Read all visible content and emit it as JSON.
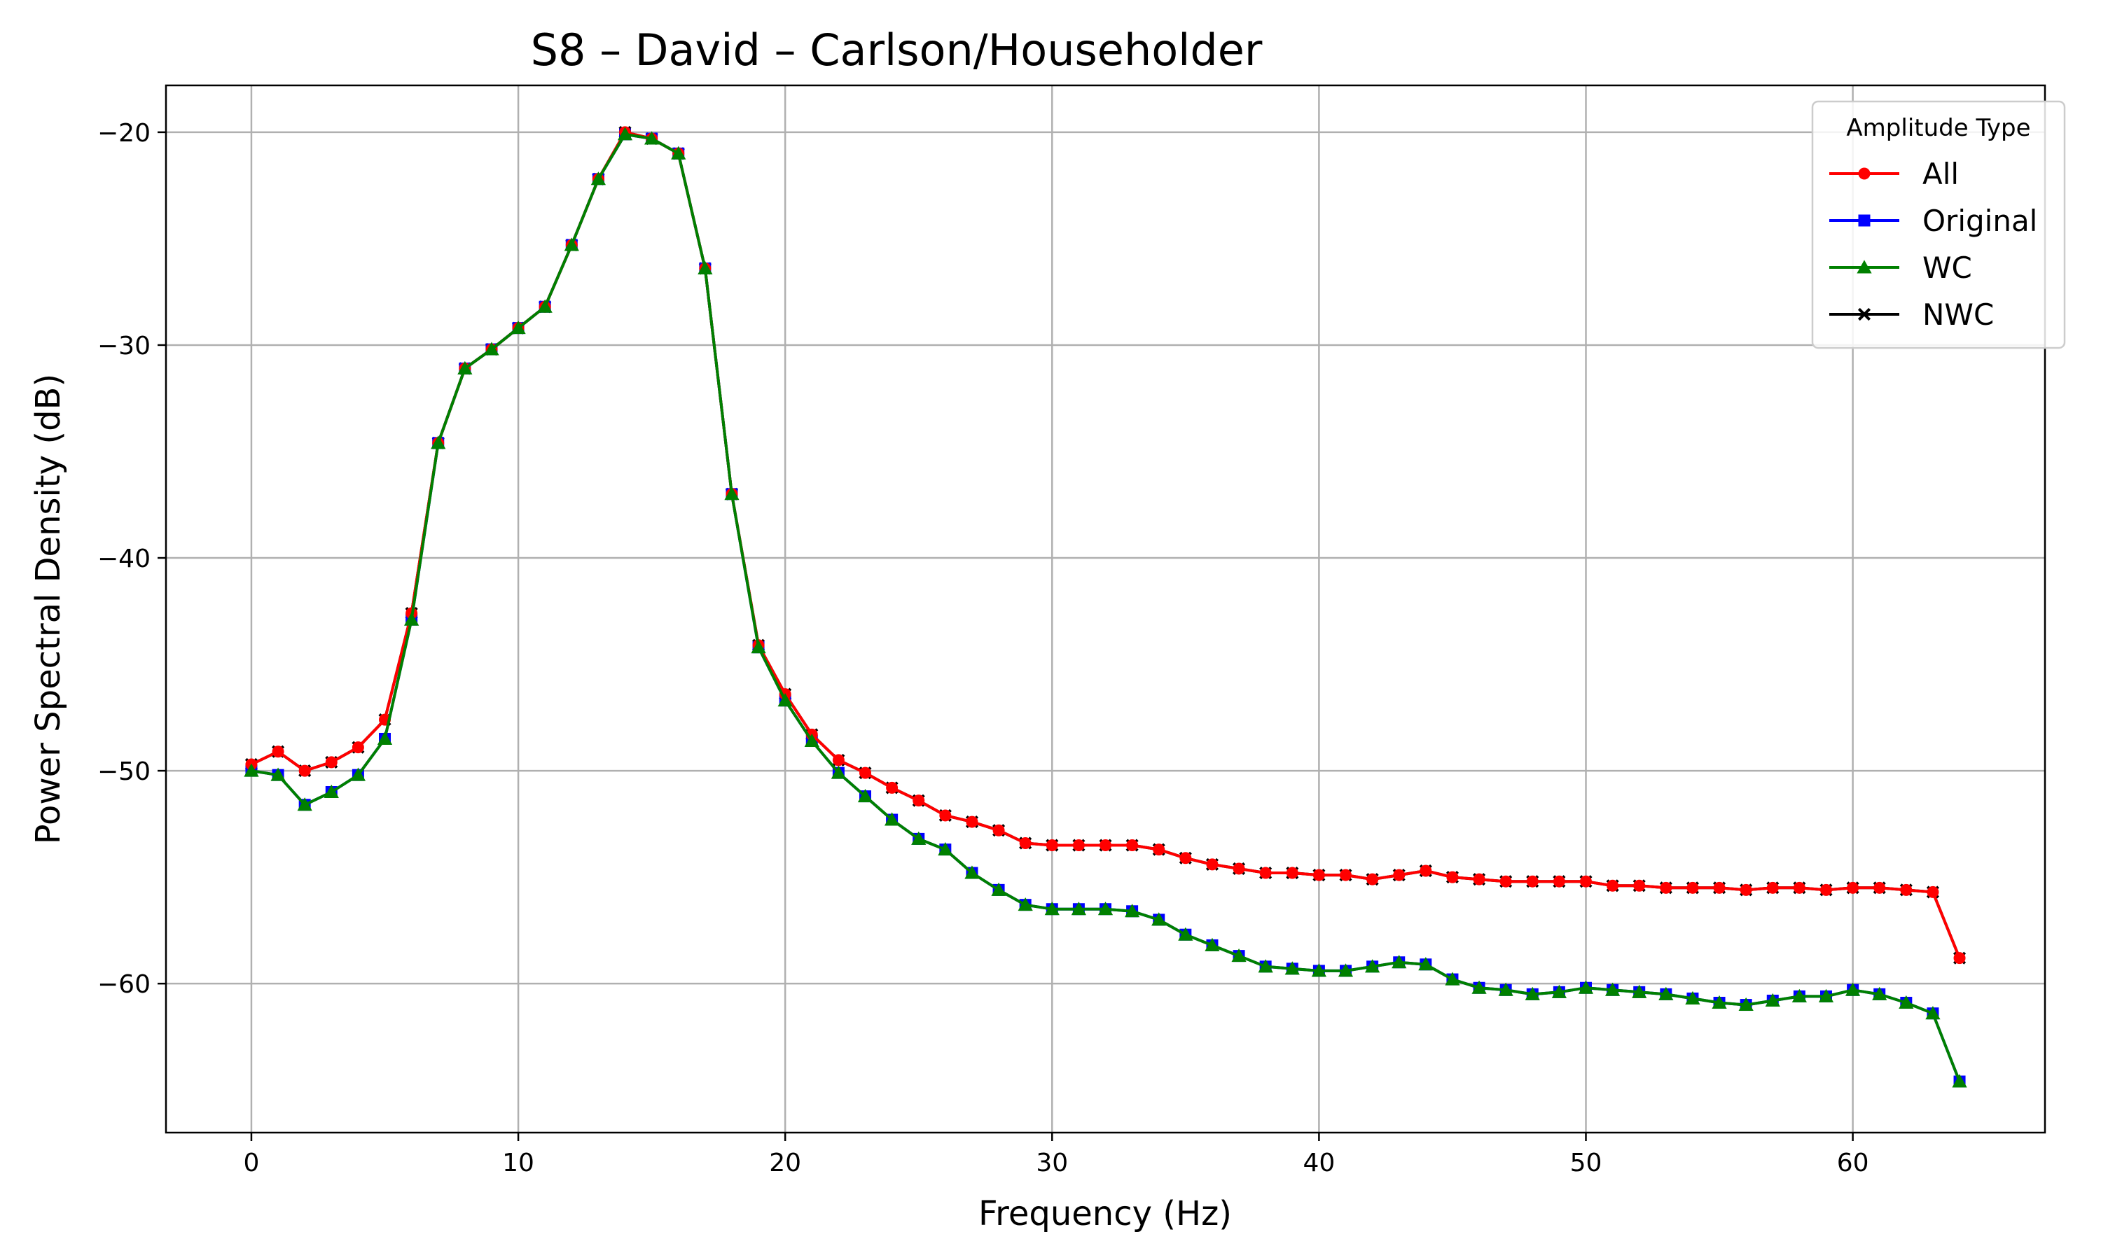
{
  "chart_data": {
    "type": "line",
    "title": "S8 – David – Carlson/Householder",
    "xlabel": "Frequency (Hz)",
    "ylabel": "Power Spectral Density (dB)",
    "xlim": [
      -3.2,
      67.2
    ],
    "ylim": [
      -67.0,
      -17.8
    ],
    "xticks": [
      0,
      10,
      20,
      30,
      40,
      50,
      60
    ],
    "yticks": [
      -20,
      -30,
      -40,
      -50,
      -60
    ],
    "xtick_labels": [
      "0",
      "10",
      "20",
      "30",
      "40",
      "50",
      "60"
    ],
    "ytick_labels": [
      "−20",
      "−30",
      "−40",
      "−50",
      "−60"
    ],
    "grid": true,
    "legend": {
      "title": "Amplitude Type",
      "placement": "top-right"
    },
    "x": [
      0,
      1,
      2,
      3,
      4,
      5,
      6,
      7,
      8,
      9,
      10,
      11,
      12,
      13,
      14,
      15,
      16,
      17,
      18,
      19,
      20,
      21,
      22,
      23,
      24,
      25,
      26,
      27,
      28,
      29,
      30,
      31,
      32,
      33,
      34,
      35,
      36,
      37,
      38,
      39,
      40,
      41,
      42,
      43,
      44,
      45,
      46,
      47,
      48,
      49,
      50,
      51,
      52,
      53,
      54,
      55,
      56,
      57,
      58,
      59,
      60,
      61,
      62,
      63,
      64
    ],
    "series": [
      {
        "name": "NWC",
        "color": "#000000",
        "marker": "x",
        "values": [
          -49.7,
          -49.1,
          -50.0,
          -49.6,
          -48.9,
          -47.6,
          -42.6,
          -34.6,
          -31.1,
          -30.2,
          -29.2,
          -28.2,
          -25.3,
          -22.2,
          -20.0,
          -20.3,
          -21.0,
          -26.4,
          -37.0,
          -44.1,
          -46.4,
          -48.3,
          -49.5,
          -50.1,
          -50.8,
          -51.4,
          -52.1,
          -52.4,
          -52.8,
          -53.4,
          -53.5,
          -53.5,
          -53.5,
          -53.5,
          -53.7,
          -54.1,
          -54.4,
          -54.6,
          -54.8,
          -54.8,
          -54.9,
          -54.9,
          -55.1,
          -54.9,
          -54.7,
          -55.0,
          -55.1,
          -55.2,
          -55.2,
          -55.2,
          -55.2,
          -55.4,
          -55.4,
          -55.5,
          -55.5,
          -55.5,
          -55.6,
          -55.5,
          -55.5,
          -55.6,
          -55.5,
          -55.5,
          -55.6,
          -55.7,
          -58.8
        ]
      },
      {
        "name": "Original",
        "color": "#0000ff",
        "marker": "s",
        "values": [
          -50.0,
          -50.2,
          -51.6,
          -51.0,
          -50.2,
          -48.5,
          -42.9,
          -34.6,
          -31.1,
          -30.2,
          -29.2,
          -28.2,
          -25.3,
          -22.2,
          -20.1,
          -20.3,
          -21.0,
          -26.4,
          -37.0,
          -44.2,
          -46.7,
          -48.6,
          -50.1,
          -51.2,
          -52.3,
          -53.2,
          -53.7,
          -54.8,
          -55.6,
          -56.3,
          -56.5,
          -56.5,
          -56.5,
          -56.6,
          -57.0,
          -57.7,
          -58.2,
          -58.7,
          -59.2,
          -59.3,
          -59.4,
          -59.4,
          -59.2,
          -59.0,
          -59.1,
          -59.8,
          -60.2,
          -60.3,
          -60.5,
          -60.4,
          -60.2,
          -60.3,
          -60.4,
          -60.5,
          -60.7,
          -60.9,
          -61.0,
          -60.8,
          -60.6,
          -60.6,
          -60.3,
          -60.5,
          -60.9,
          -61.4,
          -64.6
        ]
      },
      {
        "name": "All",
        "color": "#ff0000",
        "marker": "o",
        "values": [
          -49.7,
          -49.1,
          -50.0,
          -49.6,
          -48.9,
          -47.6,
          -42.6,
          -34.6,
          -31.1,
          -30.2,
          -29.2,
          -28.2,
          -25.3,
          -22.2,
          -20.0,
          -20.3,
          -21.0,
          -26.4,
          -37.0,
          -44.1,
          -46.4,
          -48.3,
          -49.5,
          -50.1,
          -50.8,
          -51.4,
          -52.1,
          -52.4,
          -52.8,
          -53.4,
          -53.5,
          -53.5,
          -53.5,
          -53.5,
          -53.7,
          -54.1,
          -54.4,
          -54.6,
          -54.8,
          -54.8,
          -54.9,
          -54.9,
          -55.1,
          -54.9,
          -54.7,
          -55.0,
          -55.1,
          -55.2,
          -55.2,
          -55.2,
          -55.2,
          -55.4,
          -55.4,
          -55.5,
          -55.5,
          -55.5,
          -55.6,
          -55.5,
          -55.5,
          -55.6,
          -55.5,
          -55.5,
          -55.6,
          -55.7,
          -58.8
        ]
      },
      {
        "name": "WC",
        "color": "#008000",
        "marker": "^",
        "values": [
          -50.0,
          -50.2,
          -51.6,
          -51.0,
          -50.2,
          -48.5,
          -42.9,
          -34.6,
          -31.1,
          -30.2,
          -29.2,
          -28.2,
          -25.3,
          -22.2,
          -20.1,
          -20.3,
          -21.0,
          -26.4,
          -37.0,
          -44.2,
          -46.7,
          -48.6,
          -50.1,
          -51.2,
          -52.3,
          -53.2,
          -53.7,
          -54.8,
          -55.6,
          -56.3,
          -56.5,
          -56.5,
          -56.5,
          -56.6,
          -57.0,
          -57.7,
          -58.2,
          -58.7,
          -59.2,
          -59.3,
          -59.4,
          -59.4,
          -59.2,
          -59.0,
          -59.1,
          -59.8,
          -60.2,
          -60.3,
          -60.5,
          -60.4,
          -60.2,
          -60.3,
          -60.4,
          -60.5,
          -60.7,
          -60.9,
          -61.0,
          -60.8,
          -60.6,
          -60.6,
          -60.3,
          -60.5,
          -60.9,
          -61.4,
          -64.6
        ]
      }
    ],
    "legend_order": [
      "All",
      "Original",
      "WC",
      "NWC"
    ]
  }
}
